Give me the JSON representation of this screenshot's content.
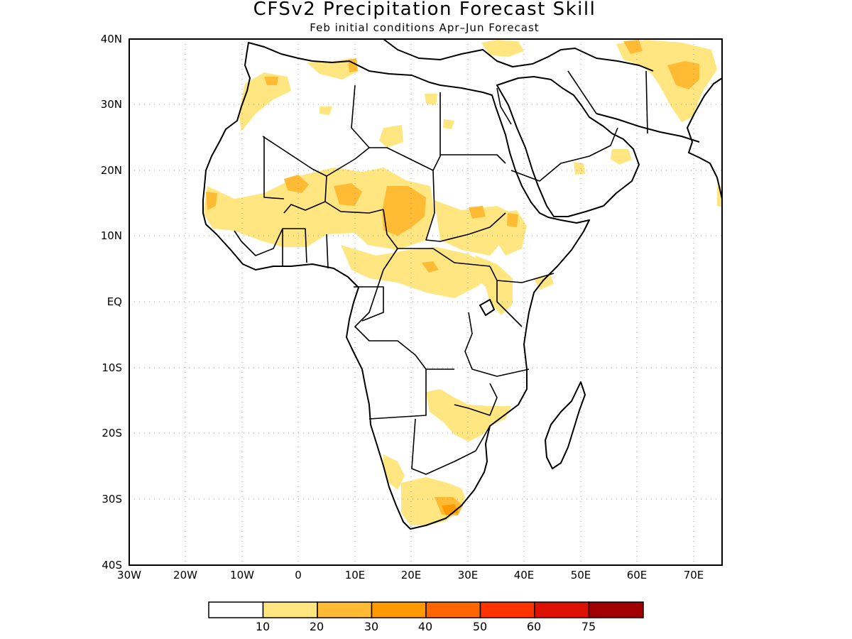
{
  "title": "CFSv2 Precipitation Forecast Skill",
  "subtitle": "Feb initial conditions  Apr–Jun Forecast",
  "map": {
    "lon_range": [
      -30,
      75
    ],
    "lat_range": [
      -40,
      40
    ],
    "x_ticks": [
      "30W",
      "20W",
      "10W",
      "0",
      "10E",
      "20E",
      "30E",
      "40E",
      "50E",
      "60E",
      "70E"
    ],
    "y_ticks": [
      "40N",
      "30N",
      "20N",
      "10N",
      "EQ",
      "10S",
      "20S",
      "30S",
      "40S"
    ],
    "grid": "dotted"
  },
  "colorbar": {
    "colors": [
      "#ffffff",
      "#ffe680",
      "#ffbb33",
      "#ff9900",
      "#ff6600",
      "#ff3300",
      "#dd1100",
      "#a00000"
    ],
    "labels": [
      "10",
      "20",
      "30",
      "40",
      "50",
      "60",
      "75"
    ]
  }
}
